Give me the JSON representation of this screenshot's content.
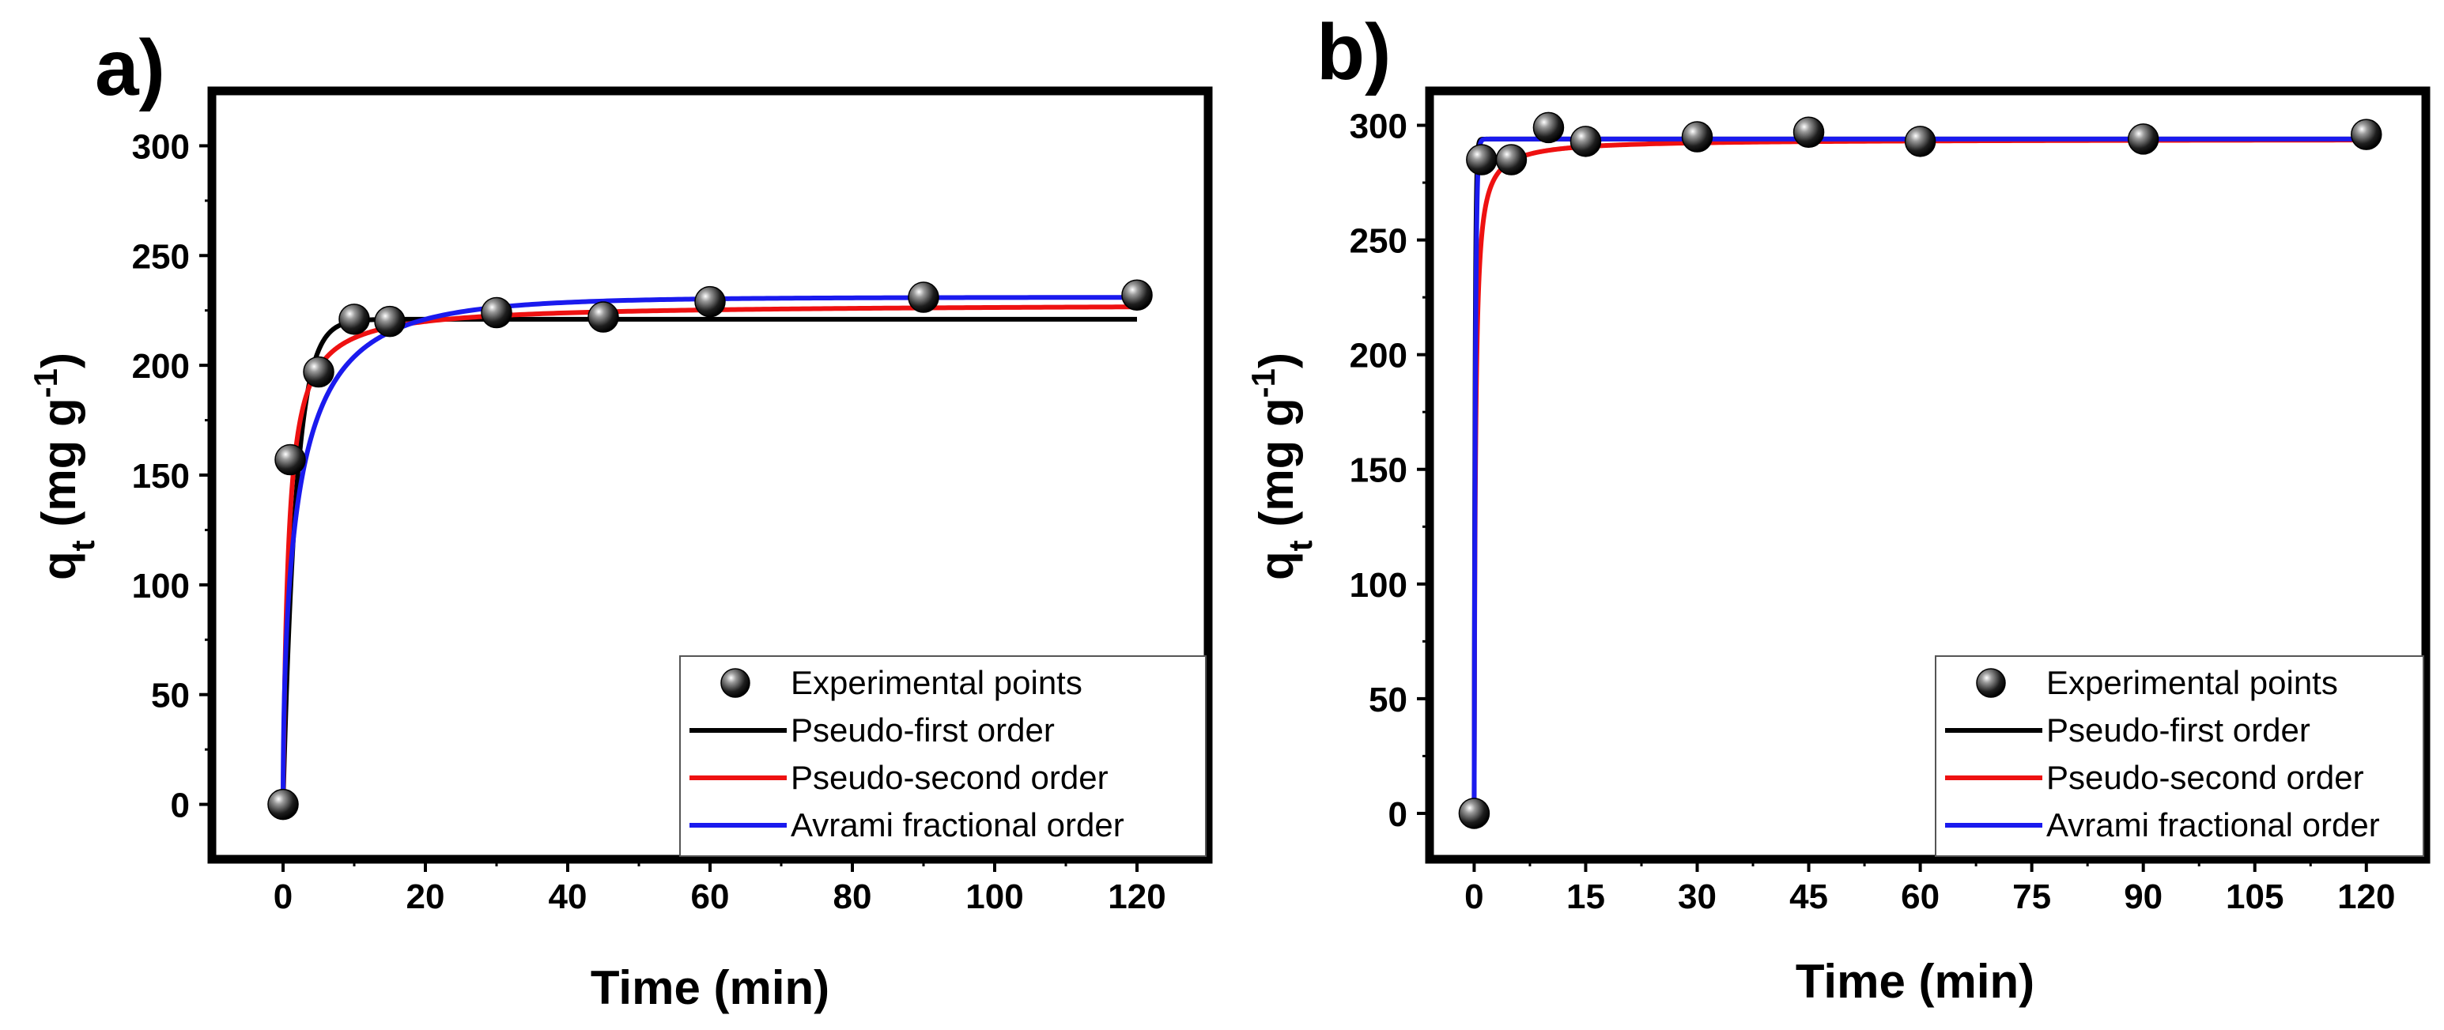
{
  "chart_data": [
    {
      "panel_label": "a)",
      "type": "line",
      "xlabel": "Time (min)",
      "ylabel": {
        "main": "q",
        "sub": "t",
        "open": " (mg g",
        "sup": "-1",
        "close": ")"
      },
      "xlim": [
        -10,
        130
      ],
      "ylim": [
        -25,
        325
      ],
      "xticks": [
        0,
        20,
        40,
        60,
        80,
        100,
        120
      ],
      "yticks": [
        0,
        50,
        100,
        150,
        200,
        250,
        300
      ],
      "grid": false,
      "legend_position": "bottom-right",
      "legend": [
        {
          "label": "Experimental points",
          "kind": "marker"
        },
        {
          "label": "Pseudo-first order",
          "kind": "line",
          "color": "#000000"
        },
        {
          "label": "Pseudo-second order",
          "kind": "line",
          "color": "#ee1111"
        },
        {
          "label": "Avrami fractional order",
          "kind": "line",
          "color": "#1a1aee"
        }
      ],
      "points": {
        "name": "Experimental points",
        "x": [
          0,
          1,
          5,
          10,
          15,
          30,
          45,
          60,
          90,
          120
        ],
        "y": [
          0,
          157,
          197,
          221,
          220,
          224,
          222,
          229,
          231,
          232
        ]
      },
      "series": [
        {
          "name": "Pseudo-first order",
          "color": "#000000",
          "model": "pfo",
          "qe": 221,
          "k": 0.55
        },
        {
          "name": "Pseudo-second order",
          "color": "#ee1111",
          "model": "pso",
          "qe": 228,
          "k": 0.006
        },
        {
          "name": "Avrami fractional order",
          "color": "#1a1aee",
          "model": "avrami",
          "qe": 231,
          "k": 0.4,
          "n": 0.55
        }
      ]
    },
    {
      "panel_label": "b)",
      "type": "line",
      "xlabel": "Time (min)",
      "ylabel": {
        "main": "q",
        "sub": "t",
        "open": " (mg g",
        "sup": "-1",
        "close": ")"
      },
      "xlim": [
        -6,
        128
      ],
      "ylim": [
        -20,
        315
      ],
      "xticks": [
        0,
        15,
        30,
        45,
        60,
        75,
        90,
        105,
        120
      ],
      "yticks": [
        0,
        50,
        100,
        150,
        200,
        250,
        300
      ],
      "grid": false,
      "legend_position": "bottom-right",
      "legend": [
        {
          "label": "Experimental points",
          "kind": "marker"
        },
        {
          "label": "Pseudo-first order",
          "kind": "line",
          "color": "#000000"
        },
        {
          "label": "Pseudo-second order",
          "kind": "line",
          "color": "#ee1111"
        },
        {
          "label": "Avrami fractional order",
          "kind": "line",
          "color": "#1a1aee"
        }
      ],
      "points": {
        "name": "Experimental points",
        "x": [
          0,
          1,
          5,
          10,
          15,
          30,
          45,
          60,
          90,
          120
        ],
        "y": [
          0,
          285,
          285,
          299,
          293,
          295,
          297,
          293,
          294,
          296
        ]
      },
      "series": [
        {
          "name": "Pseudo-first order",
          "color": "#000000",
          "model": "pfo",
          "qe": 294,
          "k": 8.0
        },
        {
          "name": "Pseudo-second order",
          "color": "#ee1111",
          "model": "pso",
          "qe": 294,
          "k": 0.02
        },
        {
          "name": "Avrami fractional order",
          "color": "#1a1aee",
          "model": "avrami",
          "qe": 294,
          "k": 6.0,
          "n": 1.0
        }
      ]
    }
  ]
}
